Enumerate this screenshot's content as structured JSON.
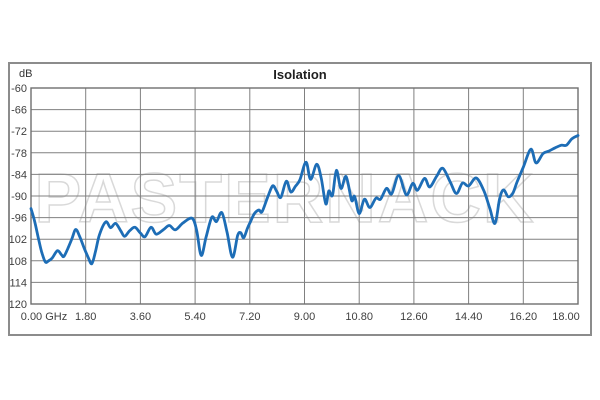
{
  "page": {
    "background": "#ffffff"
  },
  "chart": {
    "title": "Isolation",
    "y_unit_label": "dB",
    "watermark": "PASTERNACK",
    "colors": {
      "line": "#1d6db6",
      "grid": "#808080",
      "plot_border": "#6f6f6f",
      "frame_border": "#8c8c8c",
      "tick_text": "#3f3f3f",
      "title_text": "#1f1f1f",
      "watermark_stroke": "#d9d9d9",
      "watermark_fill": "#ffffff"
    }
  },
  "chart_data": {
    "type": "line",
    "title": "Isolation",
    "ylabel": "dB",
    "xlabel": "GHz",
    "xlim": [
      0,
      18
    ],
    "ylim": [
      -120,
      -60
    ],
    "grid": true,
    "legend": "none",
    "x_tick_values": [
      0,
      1.8,
      3.6,
      5.4,
      7.2,
      9.0,
      10.8,
      12.6,
      14.4,
      16.2,
      18.0
    ],
    "x_tick_labels": [
      "0.00 GHz",
      "1.80",
      "3.60",
      "5.40",
      "7.20",
      "9.00",
      "10.80",
      "12.60",
      "14.40",
      "16.20",
      "18.00"
    ],
    "y_tick_values": [
      -60,
      -66,
      -72,
      -78,
      -84,
      -90,
      -96,
      -102,
      -108,
      -114,
      -120
    ],
    "y_tick_labels": [
      "-60",
      "-66",
      "-72",
      "-78",
      "-84",
      "-90",
      "-96",
      "-102",
      "-108",
      "-114",
      "-120"
    ],
    "series": [
      {
        "name": "Isolation",
        "x": [
          0.0,
          0.12,
          0.25,
          0.35,
          0.47,
          0.58,
          0.7,
          0.87,
          1.0,
          1.08,
          1.2,
          1.35,
          1.47,
          1.6,
          1.75,
          1.88,
          2.0,
          2.12,
          2.25,
          2.46,
          2.62,
          2.78,
          2.95,
          3.08,
          3.25,
          3.42,
          3.6,
          3.75,
          3.95,
          4.12,
          4.35,
          4.55,
          4.75,
          5.0,
          5.3,
          5.45,
          5.6,
          5.76,
          5.95,
          6.1,
          6.28,
          6.45,
          6.63,
          6.8,
          6.9,
          7.0,
          7.12,
          7.22,
          7.35,
          7.5,
          7.6,
          7.78,
          7.95,
          8.08,
          8.22,
          8.4,
          8.55,
          8.7,
          8.85,
          9.05,
          9.2,
          9.4,
          9.55,
          9.7,
          9.8,
          9.92,
          10.05,
          10.2,
          10.37,
          10.55,
          10.65,
          10.8,
          10.97,
          11.15,
          11.35,
          11.5,
          11.7,
          11.87,
          12.1,
          12.35,
          12.56,
          12.72,
          12.95,
          13.12,
          13.35,
          13.55,
          13.8,
          14.0,
          14.2,
          14.4,
          14.65,
          14.9,
          15.1,
          15.27,
          15.42,
          15.55,
          15.7,
          15.85,
          16.0,
          16.2,
          16.45,
          16.62,
          16.85,
          17.05,
          17.25,
          17.45,
          17.62,
          17.8,
          18.0
        ],
        "y": [
          -93.5,
          -97.0,
          -102.0,
          -105.5,
          -108.3,
          -108.0,
          -107.2,
          -105.2,
          -106.3,
          -106.8,
          -104.8,
          -101.8,
          -99.3,
          -101.2,
          -104.5,
          -107.0,
          -108.8,
          -105.5,
          -100.8,
          -97.2,
          -98.8,
          -97.6,
          -99.6,
          -101.2,
          -99.6,
          -98.7,
          -100.3,
          -101.3,
          -98.7,
          -100.6,
          -99.4,
          -98.2,
          -99.4,
          -97.5,
          -96.2,
          -99.5,
          -106.5,
          -101.5,
          -95.9,
          -97.1,
          -94.6,
          -100.0,
          -107.0,
          -101.0,
          -100.2,
          -101.6,
          -99.0,
          -97.2,
          -94.9,
          -93.9,
          -94.4,
          -90.5,
          -87.2,
          -88.6,
          -90.4,
          -85.9,
          -88.9,
          -87.3,
          -85.5,
          -80.6,
          -85.4,
          -81.2,
          -85.0,
          -92.2,
          -88.6,
          -89.8,
          -82.9,
          -87.9,
          -84.6,
          -91.2,
          -90.1,
          -94.9,
          -90.9,
          -93.2,
          -90.6,
          -90.9,
          -87.9,
          -89.4,
          -84.3,
          -89.7,
          -86.5,
          -88.4,
          -85.1,
          -87.5,
          -84.5,
          -82.3,
          -86.2,
          -89.3,
          -86.4,
          -87.2,
          -85.0,
          -88.5,
          -93.5,
          -97.6,
          -90.8,
          -88.3,
          -90.2,
          -89.3,
          -86.0,
          -82.0,
          -77.0,
          -80.8,
          -78.2,
          -77.5,
          -76.6,
          -75.9,
          -75.9,
          -74.1,
          -73.2
        ]
      }
    ]
  }
}
